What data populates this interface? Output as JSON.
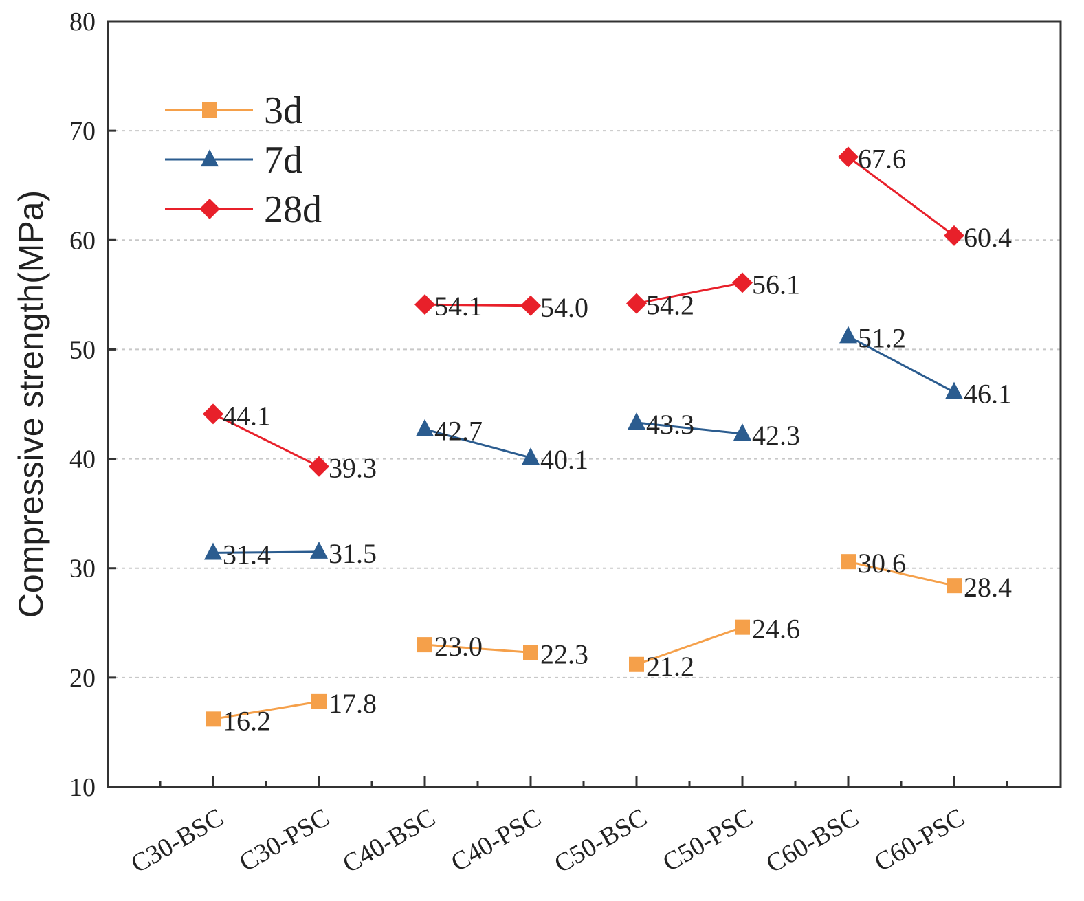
{
  "chart_data": {
    "type": "line",
    "title": "",
    "xlabel": "",
    "ylabel": "Compressive strength(MPa)",
    "ylim": [
      10,
      80
    ],
    "yticks": [
      10,
      20,
      30,
      40,
      50,
      60,
      70,
      80
    ],
    "grid": true,
    "legend_position": "top-left",
    "categories": [
      "C30-BSC",
      "C30-PSC",
      "C40-BSC",
      "C40-PSC",
      "C50-BSC",
      "C50-PSC",
      "C60-BSC",
      "C60-PSC"
    ],
    "series": [
      {
        "name": "3d",
        "color": "#F5A04A",
        "marker": "square",
        "values": [
          16.2,
          17.8,
          23.0,
          22.3,
          21.2,
          24.6,
          30.6,
          28.4
        ],
        "labels": [
          "16.2",
          "17.8",
          "23.0",
          "22.3",
          "21.2",
          "24.6",
          "30.6",
          "28.4"
        ]
      },
      {
        "name": "7d",
        "color": "#2B5C8F",
        "marker": "triangle",
        "values": [
          31.4,
          31.5,
          42.7,
          40.1,
          43.3,
          42.3,
          51.2,
          46.1
        ],
        "labels": [
          "31.4",
          "31.5",
          "42.7",
          "40.1",
          "43.3",
          "42.3",
          "51.2",
          "46.1"
        ]
      },
      {
        "name": "28d",
        "color": "#E8202A",
        "marker": "diamond",
        "values": [
          44.1,
          39.3,
          54.1,
          54.0,
          54.2,
          56.1,
          67.6,
          60.4
        ],
        "labels": [
          "44.1",
          "39.3",
          "54.1",
          "54.0",
          "54.2",
          "56.1",
          "67.6",
          "60.4"
        ]
      }
    ]
  }
}
